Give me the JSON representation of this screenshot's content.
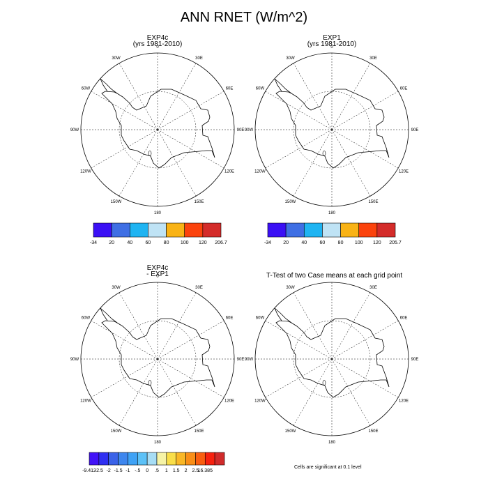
{
  "title": "ANN RNET (W/m^2)",
  "panels": [
    {
      "name": "exp4c",
      "title_line1": "EXP4c",
      "title_line2": "(yrs 1981-2010)"
    },
    {
      "name": "exp1",
      "title_line1": "EXP1",
      "title_line2": "(yrs 1981-2010)"
    },
    {
      "name": "diff",
      "title_line1": "EXP4c",
      "title_line2": "- EXP1"
    },
    {
      "name": "ttest",
      "title_line1": "T-Test of two Case means at each grid point",
      "title_line2": ""
    }
  ],
  "longitude_labels": [
    "0",
    "30E",
    "60E",
    "90E",
    "120E",
    "150E",
    "180",
    "150W",
    "120W",
    "90W",
    "60W",
    "30W"
  ],
  "colorbar_exp4c": {
    "labels": [
      "-34",
      "20",
      "40",
      "60",
      "80",
      "100",
      "120",
      "206.7"
    ],
    "colors": [
      "#3b10f5",
      "#3f6fe4",
      "#1fb4f2",
      "#bfe3f5",
      "#f9b316",
      "#fb430d",
      "#d42c2a"
    ]
  },
  "colorbar_exp1": {
    "labels": [
      "-34",
      "20",
      "40",
      "60",
      "80",
      "100",
      "120",
      "205.7"
    ],
    "colors": [
      "#3b10f5",
      "#3f6fe4",
      "#1fb4f2",
      "#bfe3f5",
      "#f9b316",
      "#fb430d",
      "#d42c2a"
    ]
  },
  "colorbar_diff": {
    "labels": [
      "-9.412",
      "-2.5",
      "-2",
      "-1.5",
      "-1",
      "-.5",
      "0",
      ".5",
      "1",
      "1.5",
      "2",
      "2.5",
      "16.385"
    ],
    "colors": [
      "#4213f7",
      "#3030f2",
      "#3a62e8",
      "#3e86ee",
      "#3fa2f5",
      "#5cc1f7",
      "#a7ddf5",
      "#f6f3a6",
      "#f9de49",
      "#f9b726",
      "#f98e17",
      "#f95e10",
      "#f6210f",
      "#d02b2b"
    ]
  },
  "footnote": "Cells are significant at 0.1 level"
}
